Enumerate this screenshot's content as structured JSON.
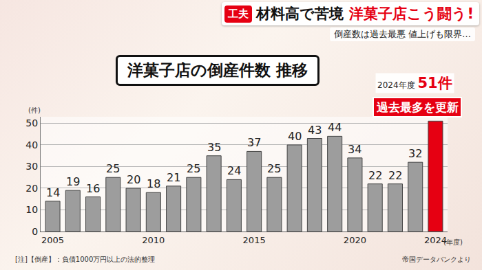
{
  "header": {
    "badge": "工夫",
    "headline": [
      "材料高で苦境",
      "洋菓子店こう闘う!"
    ],
    "subheadline": "倒産数は過去最悪 値上げも限界…"
  },
  "chart_data": {
    "type": "bar",
    "title": "洋菓子店の倒産件数 推移",
    "x": [
      2005,
      2006,
      2007,
      2008,
      2009,
      2010,
      2011,
      2012,
      2013,
      2014,
      2015,
      2016,
      2017,
      2018,
      2019,
      2020,
      2021,
      2022,
      2023,
      2024
    ],
    "values": [
      14,
      19,
      16,
      25,
      20,
      18,
      21,
      25,
      35,
      24,
      37,
      25,
      40,
      43,
      44,
      34,
      22,
      22,
      32,
      51
    ],
    "value_labels": [
      "14",
      "19",
      "16",
      "25",
      "20",
      "18",
      "21",
      "25",
      "35",
      "24",
      "37",
      "25",
      "40",
      "43",
      "44",
      "34",
      "22",
      "22",
      "32",
      "51件"
    ],
    "data_labels": true,
    "colors": [
      "#9d9d9d",
      "#9d9d9d",
      "#9d9d9d",
      "#9d9d9d",
      "#9d9d9d",
      "#9d9d9d",
      "#9d9d9d",
      "#9d9d9d",
      "#9d9d9d",
      "#9d9d9d",
      "#9d9d9d",
      "#9d9d9d",
      "#9d9d9d",
      "#9d9d9d",
      "#9d9d9d",
      "#9d9d9d",
      "#9d9d9d",
      "#9d9d9d",
      "#9d9d9d",
      "#e60012"
    ],
    "xlim": [
      2004.4,
      2024.6
    ],
    "xticks": [
      2005,
      2010,
      2015,
      2020,
      2024
    ],
    "ylim": [
      0,
      53
    ],
    "yticks": [
      0,
      10,
      20,
      30,
      40,
      50
    ],
    "grid": true,
    "ylabel": "(件)",
    "xlabel": "(年度)",
    "annotations": [
      {
        "text": "過去最多を更新",
        "x": 2024
      },
      {
        "text": "2024年度",
        "x": 2024
      }
    ],
    "note": "[注]【倒産】：負債1000万円以上の法的整理",
    "source": "帝国データバンクより"
  }
}
